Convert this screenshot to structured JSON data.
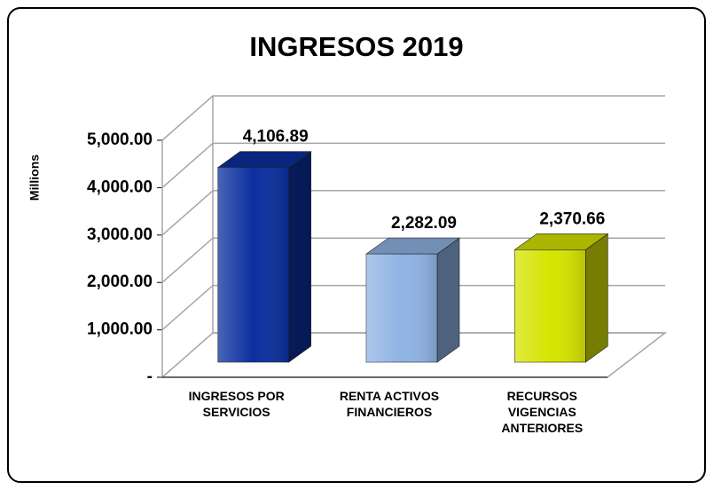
{
  "chart_data": {
    "type": "bar3d",
    "title": "INGRESOS 2019",
    "y_label": "Millions",
    "categories": [
      "INGRESOS POR SERVICIOS",
      "RENTA ACTIVOS FINANCIEROS",
      "RECURSOS VIGENCIAS ANTERIORES"
    ],
    "values": [
      4106.89,
      2282.09,
      2370.66
    ],
    "value_labels": [
      "4,106.89",
      "2,282.09",
      "2,370.66"
    ],
    "colors": [
      "#0b2f9e",
      "#8fb3e3",
      "#d6e400"
    ],
    "ylim": [
      0,
      5000
    ],
    "yticks": [
      {
        "value": 0,
        "label": "-"
      },
      {
        "value": 1000,
        "label": "1,000.00"
      },
      {
        "value": 2000,
        "label": "2,000.00"
      },
      {
        "value": 3000,
        "label": "3,000.00"
      },
      {
        "value": 4000,
        "label": "4,000.00"
      },
      {
        "value": 5000,
        "label": "5,000.00"
      }
    ],
    "grid": true
  }
}
